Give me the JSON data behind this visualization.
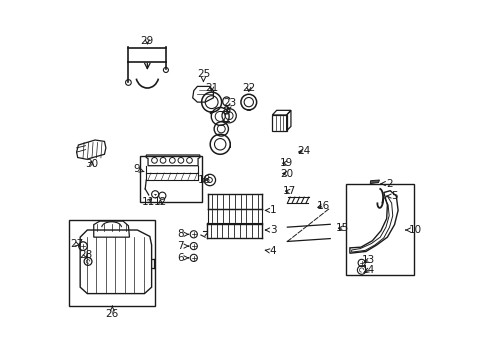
{
  "background_color": "#ffffff",
  "line_color": "#1a1a1a",
  "fig_width": 4.89,
  "fig_height": 3.6,
  "dpi": 100,
  "label_fontsize": 7.5,
  "label_positions": {
    "1": [
      0.58,
      0.415,
      0.548,
      0.415
    ],
    "2": [
      0.905,
      0.49,
      0.88,
      0.49
    ],
    "3": [
      0.58,
      0.36,
      0.548,
      0.36
    ],
    "4": [
      0.58,
      0.3,
      0.548,
      0.305
    ],
    "5": [
      0.92,
      0.455,
      0.896,
      0.455
    ],
    "6": [
      0.322,
      0.282,
      0.345,
      0.282
    ],
    "7": [
      0.322,
      0.315,
      0.345,
      0.315
    ],
    "8": [
      0.322,
      0.348,
      0.345,
      0.348
    ],
    "9": [
      0.198,
      0.53,
      0.22,
      0.523
    ],
    "10": [
      0.978,
      0.36,
      0.95,
      0.36
    ],
    "11": [
      0.23,
      0.438,
      0.248,
      0.455
    ],
    "12": [
      0.265,
      0.438,
      0.263,
      0.455
    ],
    "13": [
      0.848,
      0.275,
      0.826,
      0.268
    ],
    "14": [
      0.848,
      0.248,
      0.826,
      0.24
    ],
    "15": [
      0.775,
      0.365,
      0.752,
      0.365
    ],
    "16": [
      0.72,
      0.428,
      0.695,
      0.42
    ],
    "17": [
      0.625,
      0.468,
      0.604,
      0.47
    ],
    "18": [
      0.388,
      0.5,
      0.403,
      0.5
    ],
    "19": [
      0.618,
      0.547,
      0.596,
      0.547
    ],
    "20": [
      0.618,
      0.518,
      0.596,
      0.518
    ],
    "21": [
      0.408,
      0.758,
      0.408,
      0.738
    ],
    "22": [
      0.512,
      0.758,
      0.512,
      0.737
    ],
    "23": [
      0.46,
      0.715,
      0.452,
      0.693
    ],
    "24": [
      0.665,
      0.58,
      0.641,
      0.577
    ],
    "25": [
      0.385,
      0.798,
      0.385,
      0.773
    ],
    "26": [
      0.13,
      0.125,
      0.13,
      0.148
    ],
    "27": [
      0.03,
      0.32,
      0.048,
      0.315
    ],
    "28": [
      0.055,
      0.29,
      0.062,
      0.272
    ],
    "29": [
      0.228,
      0.89,
      0.228,
      0.87
    ],
    "30": [
      0.072,
      0.545,
      0.072,
      0.563
    ]
  }
}
